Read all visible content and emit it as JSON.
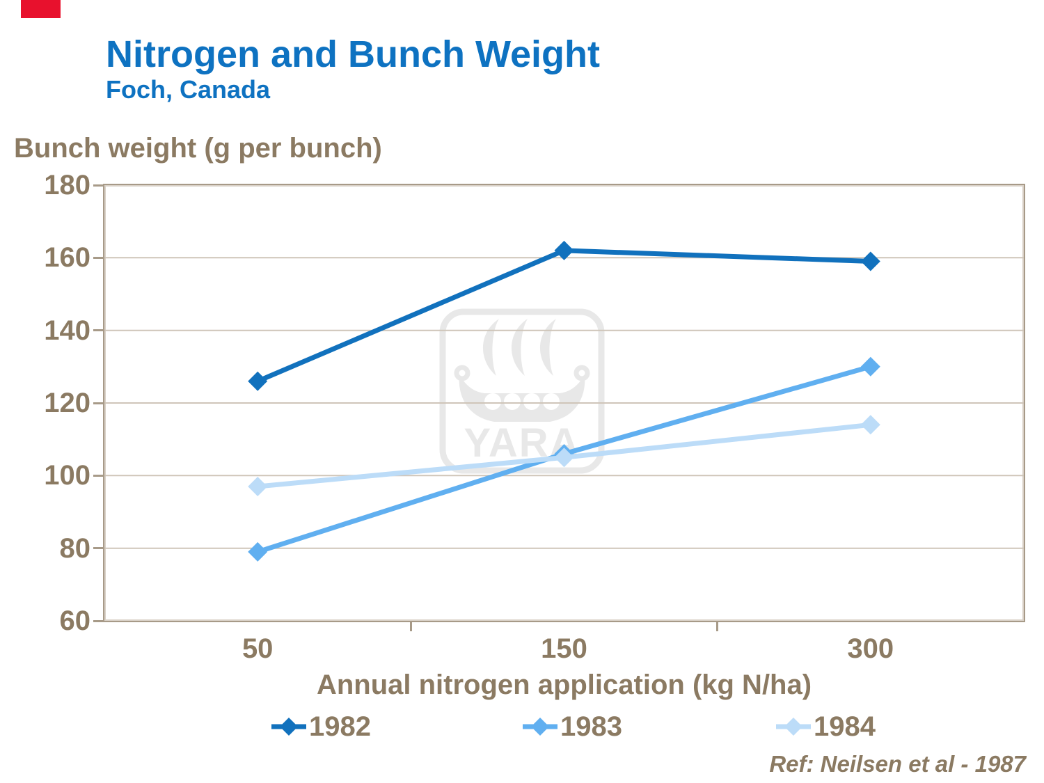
{
  "slide": {
    "background": "#ffffff"
  },
  "brand": {
    "corner_tab_color": "#e8112d"
  },
  "header": {
    "title": "Nitrogen and Bunch Weight",
    "subtitle": "Foch, Canada",
    "title_color": "#0e72c1"
  },
  "watermark": {
    "label": "YARA",
    "icon": "yara-viking-ship-logo",
    "color": "#e8e8e8"
  },
  "footer": {
    "reference": "Ref: Neilsen et al - 1987"
  },
  "chart_data": {
    "type": "line",
    "title": "Nitrogen and Bunch Weight",
    "subtitle": "Foch, Canada",
    "xlabel": "Annual nitrogen application (kg N/ha)",
    "ylabel": "Bunch weight (g per bunch)",
    "categories": [
      "50",
      "150",
      "300"
    ],
    "series": [
      {
        "name": "1982",
        "color": "#1171bd",
        "values": [
          126,
          162,
          159
        ]
      },
      {
        "name": "1983",
        "color": "#60aff0",
        "values": [
          79,
          106,
          130
        ]
      },
      {
        "name": "1984",
        "color": "#bcdcf8",
        "values": [
          97,
          105,
          114
        ]
      }
    ],
    "ylim": [
      60,
      180
    ],
    "y_ticks": [
      180,
      160,
      140,
      120,
      100,
      80,
      60
    ],
    "grid": "horizontal-major",
    "marker": "diamond",
    "legend_position": "bottom",
    "colors": {
      "axis": "#a79a88",
      "axis_inner_highlight": "#d9d1c7",
      "gridline": "#cfc5b9",
      "axis_labels": "#8b7a62"
    }
  }
}
